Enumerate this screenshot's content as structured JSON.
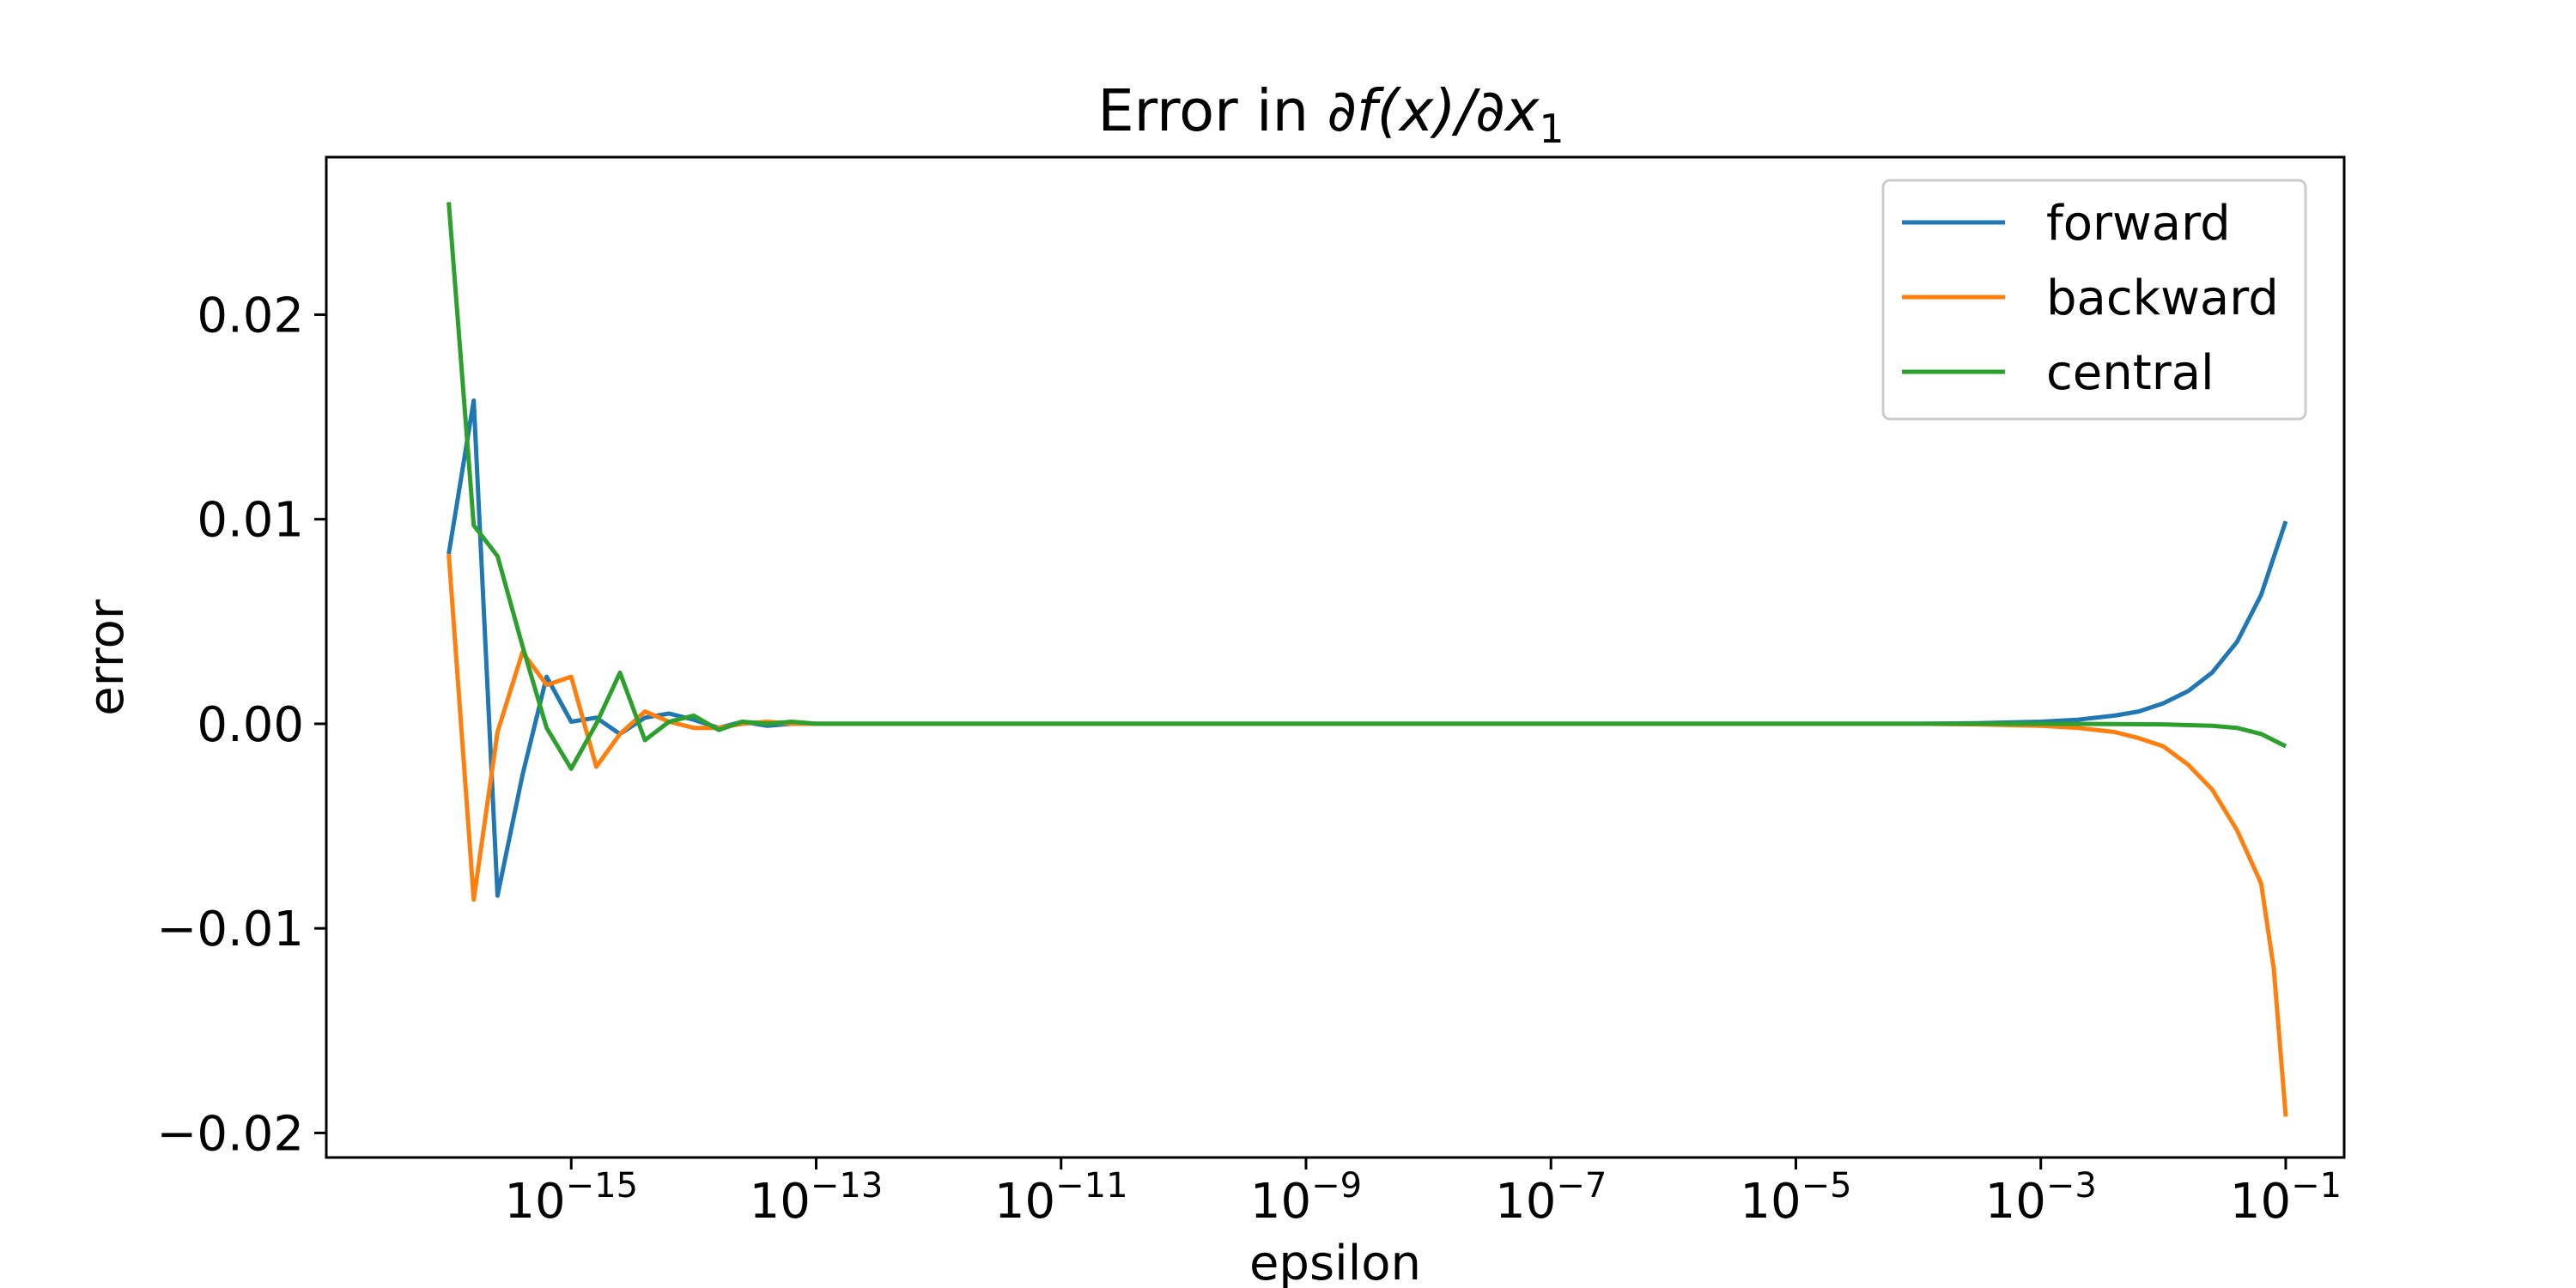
{
  "chart_data": {
    "type": "line",
    "title_prefix": "Error in ",
    "title_math": "∂f(x)/∂x",
    "title_sub": "1",
    "xlabel": "epsilon",
    "ylabel": "error",
    "x_scale": "log",
    "xlim": [
      1e-17,
      0.3
    ],
    "ylim": [
      -0.0212,
      0.0277
    ],
    "x_ticks": [
      {
        "base": "10",
        "exp": "−15",
        "value": 1e-15
      },
      {
        "base": "10",
        "exp": "−13",
        "value": 1e-13
      },
      {
        "base": "10",
        "exp": "−11",
        "value": 1e-11
      },
      {
        "base": "10",
        "exp": "−9",
        "value": 1e-09
      },
      {
        "base": "10",
        "exp": "−7",
        "value": 1e-07
      },
      {
        "base": "10",
        "exp": "−5",
        "value": 1e-05
      },
      {
        "base": "10",
        "exp": "−3",
        "value": 0.001
      },
      {
        "base": "10",
        "exp": "−1",
        "value": 0.1
      }
    ],
    "y_ticks": [
      {
        "label": "0.02",
        "value": 0.02
      },
      {
        "label": "0.01",
        "value": 0.01
      },
      {
        "label": "0.00",
        "value": 0.0
      },
      {
        "label": "−0.01",
        "value": -0.01
      },
      {
        "label": "−0.02",
        "value": -0.02
      }
    ],
    "legend_position": "top-right",
    "grid": false,
    "series": [
      {
        "name": "forward",
        "color": "#1f77b4",
        "x": [
          1e-16,
          1.6e-16,
          2.5e-16,
          4e-16,
          6.3e-16,
          1e-15,
          1.6e-15,
          2.5e-15,
          4e-15,
          6.3e-15,
          1e-14,
          1.6e-14,
          2.5e-14,
          4e-14,
          6.3e-14,
          1e-13,
          1e-11,
          1e-09,
          1e-07,
          1e-05,
          0.0001,
          0.0003,
          0.001,
          0.002,
          0.004,
          0.0063,
          0.01,
          0.016,
          0.025,
          0.04,
          0.063,
          0.1
        ],
        "y": [
          0.0083,
          0.0158,
          -0.0084,
          -0.0025,
          0.0023,
          0.0001,
          0.0003,
          -0.0005,
          0.0003,
          0.0005,
          0.0002,
          -0.0002,
          0.0001,
          -0.0001,
          0.0,
          0.0,
          0.0,
          0.0,
          0.0,
          0.0,
          0.0,
          3e-05,
          0.0001,
          0.0002,
          0.0004,
          0.0006,
          0.001,
          0.0016,
          0.0025,
          0.004,
          0.0063,
          0.0099
        ]
      },
      {
        "name": "backward",
        "color": "#ff7f0e",
        "x": [
          1e-16,
          1.6e-16,
          2.5e-16,
          4e-16,
          6.3e-16,
          1e-15,
          1.6e-15,
          2.5e-15,
          4e-15,
          6.3e-15,
          1e-14,
          1.6e-14,
          2.5e-14,
          4e-14,
          6.3e-14,
          1e-13,
          1e-11,
          1e-09,
          1e-07,
          1e-05,
          0.0001,
          0.0003,
          0.001,
          0.002,
          0.004,
          0.0063,
          0.01,
          0.016,
          0.025,
          0.04,
          0.063,
          0.08,
          0.1
        ],
        "y": [
          0.0083,
          -0.0086,
          -0.0004,
          0.0035,
          0.0019,
          0.0023,
          -0.0021,
          -0.0005,
          0.0006,
          0.0001,
          -0.0002,
          -0.0002,
          0.0,
          0.0001,
          0.0,
          0.0,
          0.0,
          0.0,
          0.0,
          0.0,
          0.0,
          -3e-05,
          -0.0001,
          -0.0002,
          -0.0004,
          -0.0007,
          -0.0011,
          -0.002,
          -0.0032,
          -0.0052,
          -0.0078,
          -0.012,
          -0.0192
        ]
      },
      {
        "name": "central",
        "color": "#2ca02c",
        "x": [
          1e-16,
          1.6e-16,
          2.5e-16,
          4e-16,
          6.3e-16,
          1e-15,
          1.6e-15,
          2.5e-15,
          4e-15,
          6.3e-15,
          1e-14,
          1.6e-14,
          2.5e-14,
          4e-14,
          6.3e-14,
          1e-13,
          1e-11,
          1e-09,
          1e-07,
          1e-05,
          0.001,
          0.004,
          0.01,
          0.025,
          0.04,
          0.063,
          0.1
        ],
        "y": [
          0.0255,
          0.0097,
          0.0082,
          0.0038,
          -0.0002,
          -0.0022,
          0.0,
          0.0025,
          -0.0008,
          0.0001,
          0.0004,
          -0.0003,
          0.0001,
          0.0,
          0.0001,
          0.0,
          0.0,
          0.0,
          0.0,
          0.0,
          0.0,
          -1e-05,
          -3e-05,
          -0.0001,
          -0.0002,
          -0.0005,
          -0.0011
        ]
      }
    ]
  }
}
